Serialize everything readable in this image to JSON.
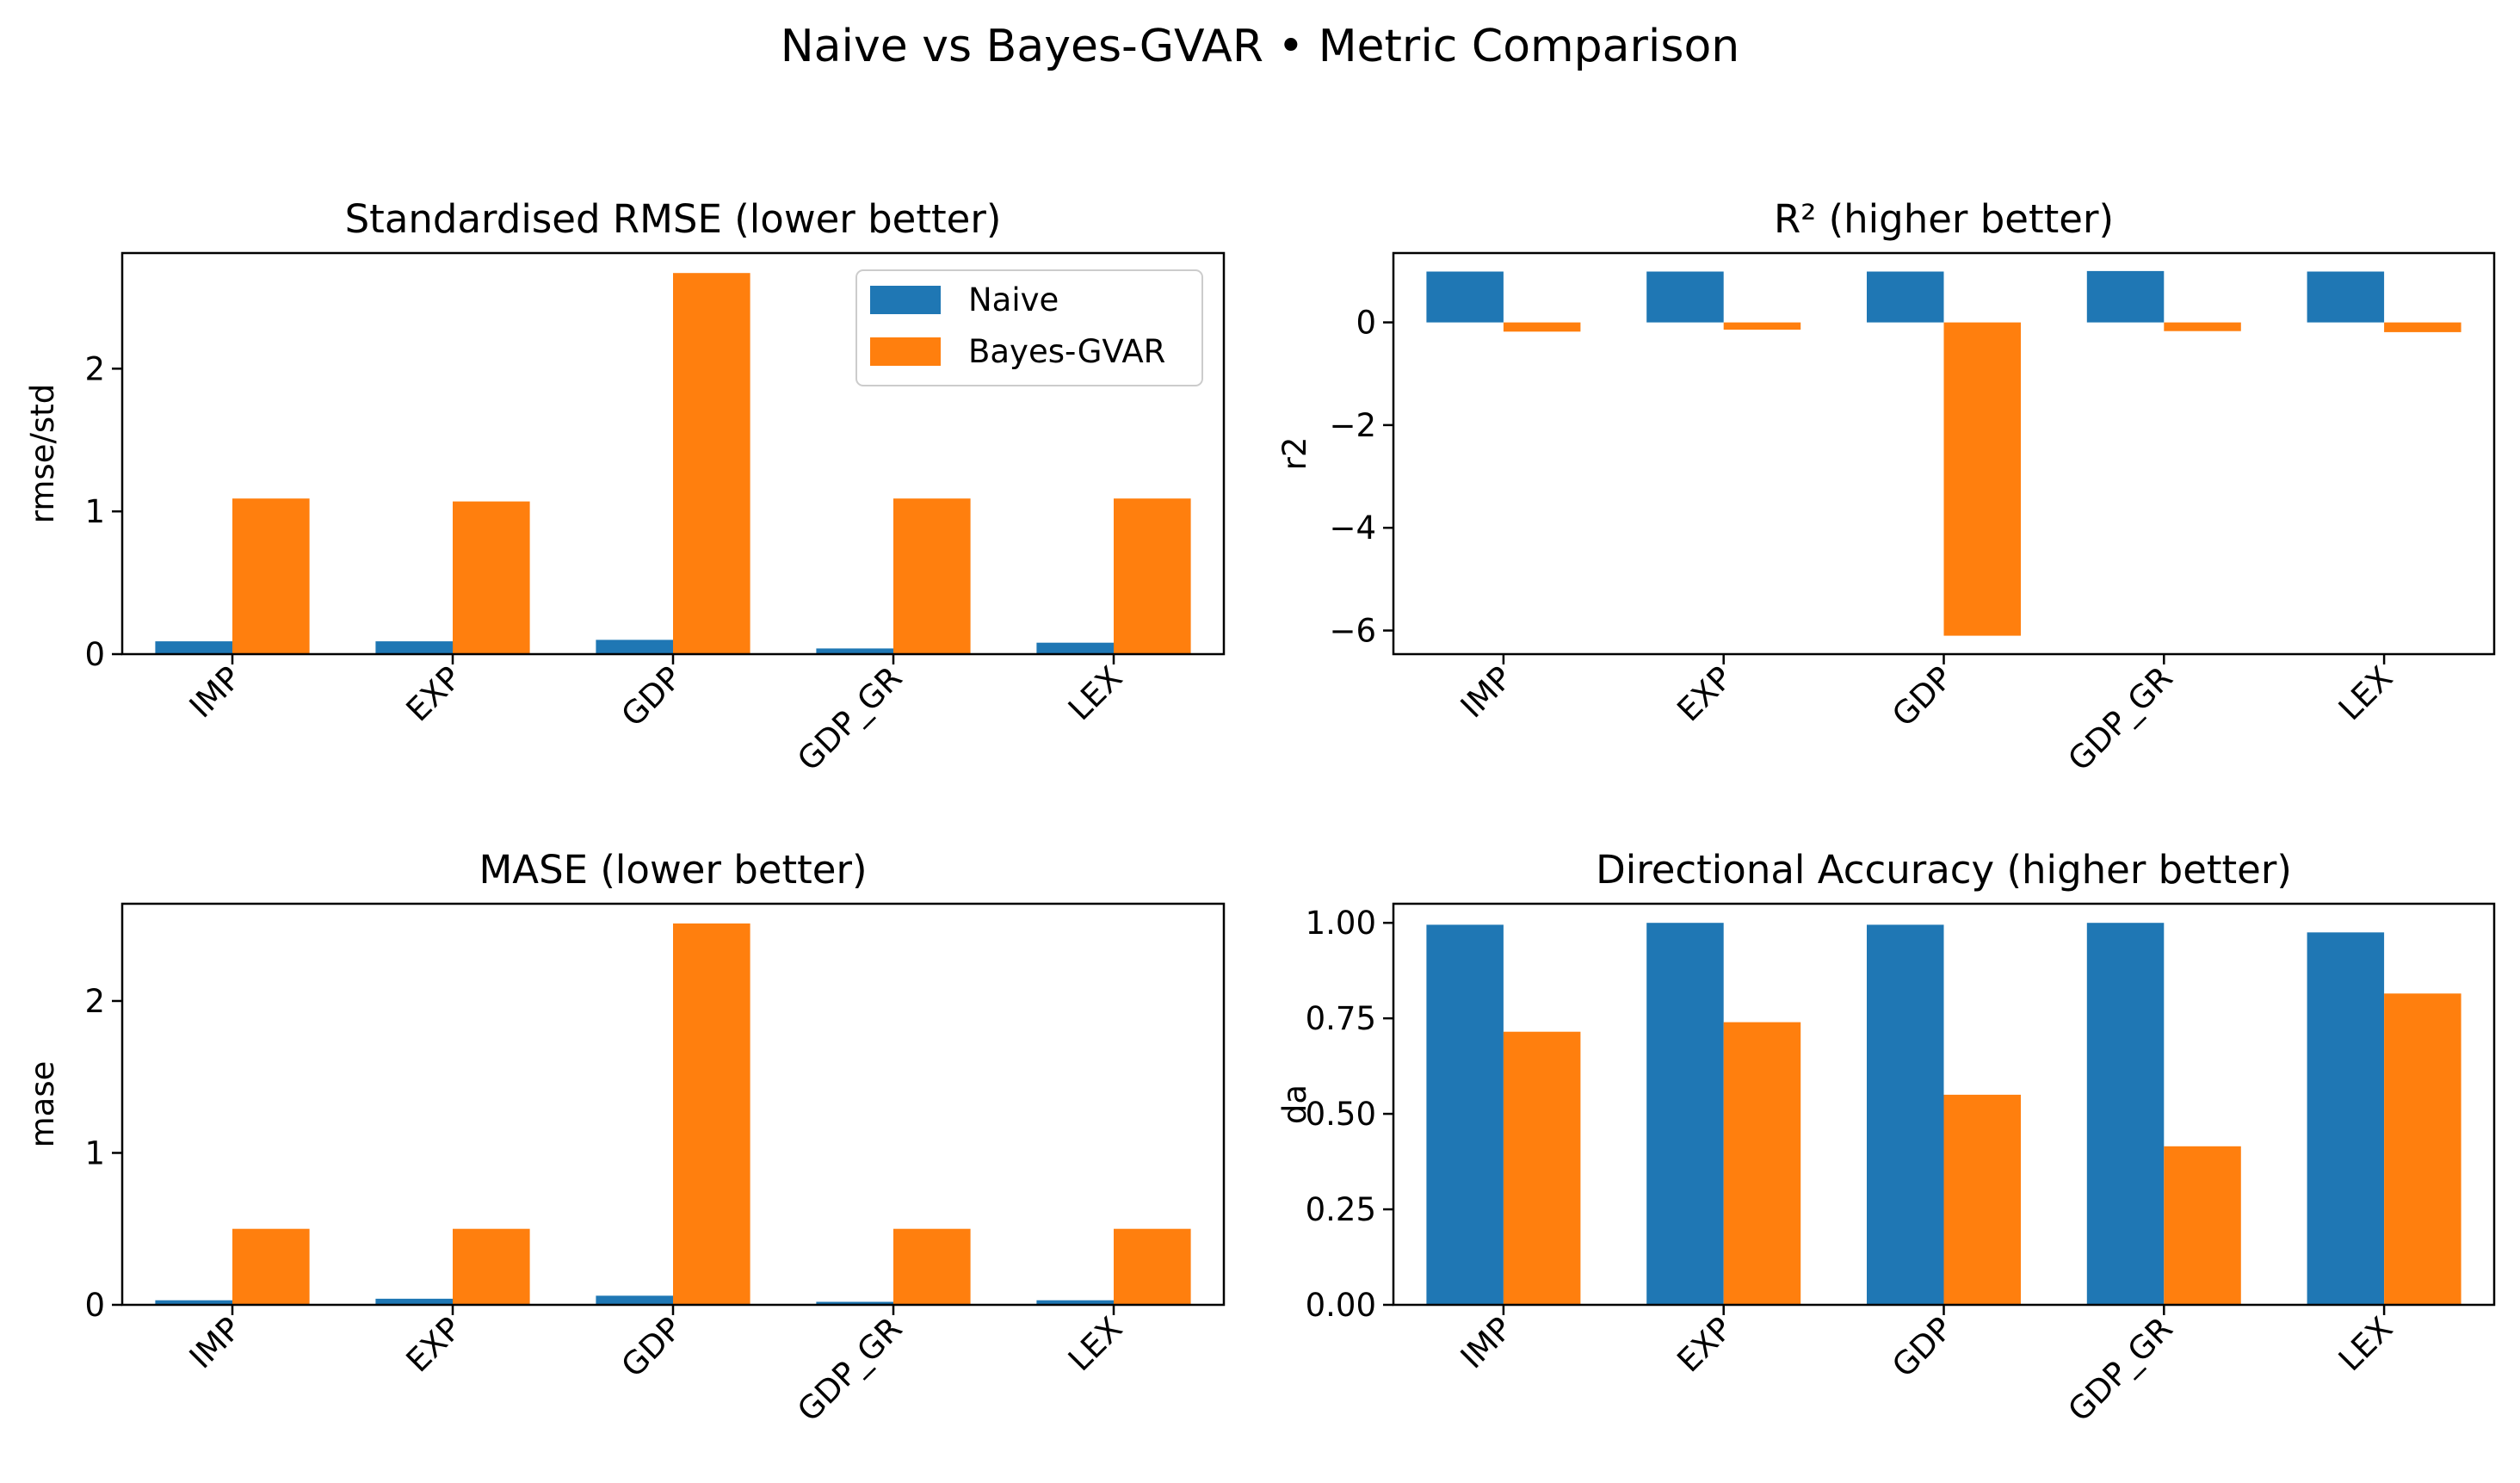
{
  "figure": {
    "suptitle": "Naive vs Bayes-GVAR • Metric Comparison"
  },
  "colors": {
    "naive": "#1f77b4",
    "bayes": "#ff7f0e",
    "axis": "#000000",
    "legend_border": "#cccccc"
  },
  "chart_data": [
    {
      "type": "bar",
      "title": "Standardised RMSE (lower better)",
      "xlabel": "",
      "ylabel": "rmse/std",
      "categories": [
        "IMP",
        "EXP",
        "GDP",
        "GDP_GR",
        "LEX"
      ],
      "series": [
        {
          "name": "Naive",
          "values": [
            0.09,
            0.09,
            0.1,
            0.04,
            0.08
          ]
        },
        {
          "name": "Bayes-GVAR",
          "values": [
            1.09,
            1.07,
            2.67,
            1.09,
            1.09
          ]
        }
      ],
      "ylim": [
        0,
        2.81
      ],
      "yticks": [
        "0",
        "1",
        "2"
      ],
      "ytick_values": [
        0,
        1,
        2
      ],
      "legend": "top-right",
      "grid": false
    },
    {
      "type": "bar",
      "title": "R² (higher better)",
      "xlabel": "",
      "ylabel": "r2",
      "categories": [
        "IMP",
        "EXP",
        "GDP",
        "GDP_GR",
        "LEX"
      ],
      "series": [
        {
          "name": "Naive",
          "values": [
            0.99,
            0.99,
            0.99,
            1.0,
            0.99
          ]
        },
        {
          "name": "Bayes-GVAR",
          "values": [
            -0.18,
            -0.14,
            -6.1,
            -0.17,
            -0.19
          ]
        }
      ],
      "ylim": [
        -6.46,
        1.35
      ],
      "yticks": [
        "−6",
        "−4",
        "−2",
        "0"
      ],
      "ytick_values": [
        -6,
        -4,
        -2,
        0
      ],
      "grid": false
    },
    {
      "type": "bar",
      "title": "MASE (lower better)",
      "xlabel": "",
      "ylabel": "mase",
      "categories": [
        "IMP",
        "EXP",
        "GDP",
        "GDP_GR",
        "LEX"
      ],
      "series": [
        {
          "name": "Naive",
          "values": [
            0.03,
            0.04,
            0.06,
            0.02,
            0.03
          ]
        },
        {
          "name": "Bayes-GVAR",
          "values": [
            0.5,
            0.5,
            2.51,
            0.5,
            0.5
          ]
        }
      ],
      "ylim": [
        0,
        2.64
      ],
      "yticks": [
        "0",
        "1",
        "2"
      ],
      "ytick_values": [
        0,
        1,
        2
      ],
      "grid": false
    },
    {
      "type": "bar",
      "title": "Directional Accuracy (higher better)",
      "xlabel": "",
      "ylabel": "da",
      "categories": [
        "IMP",
        "EXP",
        "GDP",
        "GDP_GR",
        "LEX"
      ],
      "series": [
        {
          "name": "Naive",
          "values": [
            0.995,
            1.0,
            0.995,
            1.0,
            0.975
          ]
        },
        {
          "name": "Bayes-GVAR",
          "values": [
            0.715,
            0.74,
            0.55,
            0.415,
            0.815
          ]
        }
      ],
      "ylim": [
        0,
        1.05
      ],
      "yticks": [
        "0.00",
        "0.25",
        "0.50",
        "0.75",
        "1.00"
      ],
      "ytick_values": [
        0,
        0.25,
        0.5,
        0.75,
        1.0
      ],
      "grid": false
    }
  ]
}
